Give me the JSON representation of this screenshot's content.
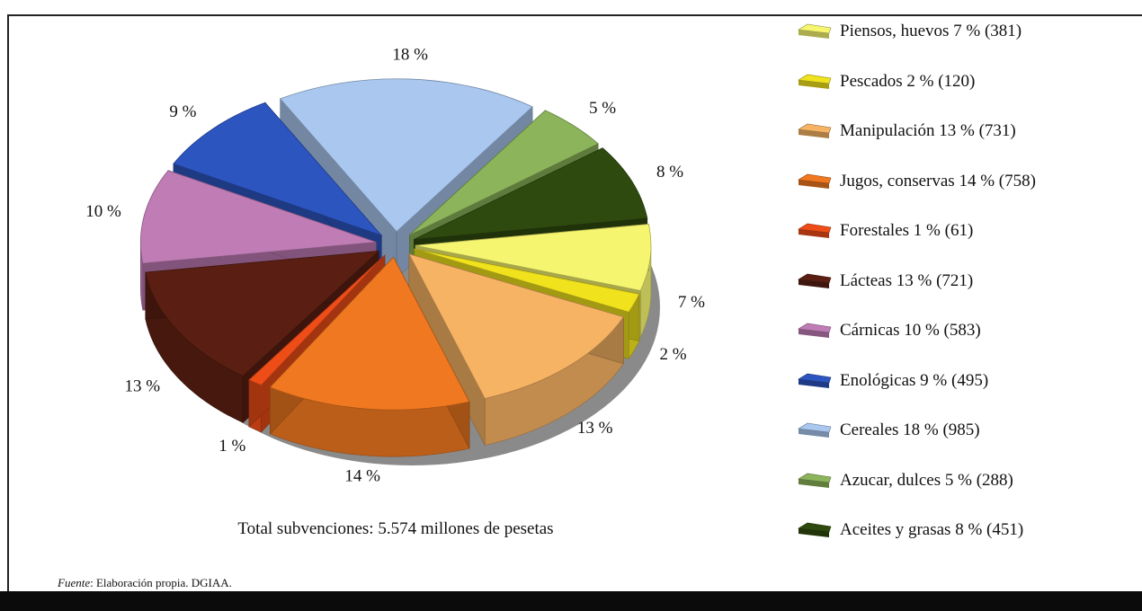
{
  "chart_data": {
    "type": "pie",
    "style": "3d-exploded",
    "total_note": "Total subvenciones: 5.574 millones de pesetas",
    "source_label": "Fuente",
    "source_text": ": Elaboración propia. DGIAA.",
    "slices": [
      {
        "name": "Piensos, huevos",
        "percent": 7,
        "value": 381,
        "color": "#f5f56f",
        "label": "7 %",
        "legend": "Piensos, huevos 7 % (381)"
      },
      {
        "name": "Pescados",
        "percent": 2,
        "value": 120,
        "color": "#f0e21d",
        "label": "2 %",
        "legend": "Pescados 2 % (120)"
      },
      {
        "name": "Manipulación",
        "percent": 13,
        "value": 731,
        "color": "#f7b364",
        "label": "13 %",
        "legend": "Manipulación 13 % (731)"
      },
      {
        "name": "Jugos, conservas",
        "percent": 14,
        "value": 758,
        "color": "#f07820",
        "label": "14 %",
        "legend": "Jugos, conservas 14 % (758)"
      },
      {
        "name": "Forestales",
        "percent": 1,
        "value": 61,
        "color": "#ee4d18",
        "label": "1 %",
        "legend": "Forestales 1 % (61)"
      },
      {
        "name": "Lácteas",
        "percent": 13,
        "value": 721,
        "color": "#5a1f12",
        "label": "13 %",
        "legend": "Lácteas 13 % (721)"
      },
      {
        "name": "Cárnicas",
        "percent": 10,
        "value": 583,
        "color": "#c07cb5",
        "label": "10 %",
        "legend": "Cárnicas 10 % (583)"
      },
      {
        "name": "Enológicas",
        "percent": 9,
        "value": 495,
        "color": "#2c55c0",
        "label": "9 %",
        "legend": "Enológicas 9 % (495)"
      },
      {
        "name": "Cereales",
        "percent": 18,
        "value": 985,
        "color": "#a9c7ef",
        "label": "18 %",
        "legend": "Cereales 18 % (985)"
      },
      {
        "name": "Azucar, dulces",
        "percent": 5,
        "value": 288,
        "color": "#8cb45a",
        "label": "5 %",
        "legend": "Azucar, dulces 5 % (288)"
      },
      {
        "name": "Aceites y grasas",
        "percent": 8,
        "value": 451,
        "color": "#2f4a0e",
        "label": "8 %",
        "legend": "Aceites y grasas 8 % (451)"
      }
    ],
    "legend_order": [
      "Piensos, huevos",
      "Pescados",
      "Manipulación",
      "Jugos, conservas",
      "Forestales",
      "Lácteas",
      "Cárnicas",
      "Enológicas",
      "Cereales",
      "Azucar, dulces",
      "Aceites y grasas"
    ]
  }
}
